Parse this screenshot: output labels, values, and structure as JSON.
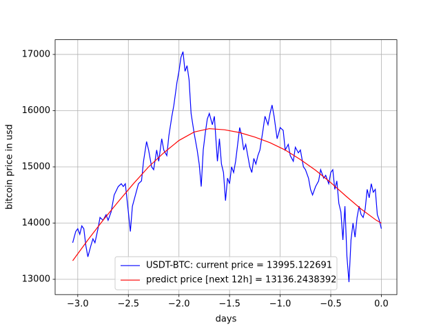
{
  "chart_data": {
    "type": "line",
    "xlabel": "days",
    "ylabel": "bitcoin price in usd",
    "xlim": [
      -3.2235,
      0.1535
    ],
    "ylim": [
      12728,
      17262
    ],
    "xticks": [
      {
        "value": -3.0,
        "label": "−3.0"
      },
      {
        "value": -2.5,
        "label": "−2.5"
      },
      {
        "value": -2.0,
        "label": "−2.0"
      },
      {
        "value": -1.5,
        "label": "−1.5"
      },
      {
        "value": -1.0,
        "label": "−1.0"
      },
      {
        "value": -0.5,
        "label": "−0.5"
      },
      {
        "value": 0.0,
        "label": "0.0"
      }
    ],
    "yticks": [
      13000,
      14000,
      15000,
      16000,
      17000
    ],
    "grid": true,
    "legend": "lower center",
    "series": [
      {
        "name": "USDT-BTC: current price = 13995.122691",
        "color": "#0000ff",
        "x": [
          -3.05,
          -3.02,
          -3.0,
          -2.98,
          -2.96,
          -2.94,
          -2.92,
          -2.9,
          -2.87,
          -2.85,
          -2.83,
          -2.8,
          -2.78,
          -2.75,
          -2.72,
          -2.7,
          -2.67,
          -2.64,
          -2.6,
          -2.57,
          -2.55,
          -2.53,
          -2.5,
          -2.48,
          -2.46,
          -2.43,
          -2.4,
          -2.37,
          -2.35,
          -2.32,
          -2.3,
          -2.27,
          -2.25,
          -2.22,
          -2.2,
          -2.17,
          -2.15,
          -2.12,
          -2.1,
          -2.07,
          -2.05,
          -2.02,
          -2.0,
          -1.98,
          -1.96,
          -1.94,
          -1.92,
          -1.9,
          -1.88,
          -1.85,
          -1.82,
          -1.8,
          -1.78,
          -1.76,
          -1.74,
          -1.72,
          -1.7,
          -1.67,
          -1.65,
          -1.62,
          -1.6,
          -1.58,
          -1.56,
          -1.54,
          -1.52,
          -1.5,
          -1.48,
          -1.46,
          -1.44,
          -1.42,
          -1.4,
          -1.38,
          -1.36,
          -1.34,
          -1.32,
          -1.3,
          -1.28,
          -1.26,
          -1.24,
          -1.22,
          -1.2,
          -1.17,
          -1.15,
          -1.12,
          -1.1,
          -1.08,
          -1.06,
          -1.03,
          -1.0,
          -0.97,
          -0.95,
          -0.92,
          -0.9,
          -0.87,
          -0.85,
          -0.82,
          -0.8,
          -0.77,
          -0.75,
          -0.72,
          -0.7,
          -0.68,
          -0.65,
          -0.62,
          -0.6,
          -0.57,
          -0.55,
          -0.52,
          -0.5,
          -0.48,
          -0.46,
          -0.44,
          -0.42,
          -0.4,
          -0.38,
          -0.36,
          -0.34,
          -0.32,
          -0.3,
          -0.28,
          -0.26,
          -0.24,
          -0.22,
          -0.2,
          -0.18,
          -0.16,
          -0.14,
          -0.12,
          -0.1,
          -0.08,
          -0.06,
          -0.04,
          -0.02,
          0.0
        ],
        "values": [
          13650,
          13850,
          13900,
          13800,
          13950,
          13900,
          13600,
          13400,
          13600,
          13720,
          13650,
          13900,
          14100,
          14050,
          14150,
          14050,
          14200,
          14500,
          14650,
          14700,
          14650,
          14700,
          14200,
          13850,
          14300,
          14500,
          14700,
          14750,
          15100,
          15450,
          15300,
          15000,
          14950,
          15300,
          15100,
          15500,
          15300,
          15200,
          15550,
          15900,
          16100,
          16500,
          16700,
          16950,
          17050,
          16700,
          16800,
          16550,
          15950,
          15600,
          15300,
          15050,
          14650,
          15300,
          15600,
          15850,
          15950,
          15750,
          15900,
          15100,
          15500,
          15050,
          14900,
          14400,
          14800,
          14700,
          15000,
          14900,
          15100,
          15400,
          15700,
          15550,
          15300,
          15400,
          15200,
          15000,
          14900,
          15150,
          15050,
          15200,
          15300,
          15650,
          15900,
          15750,
          15950,
          16100,
          15900,
          15500,
          15700,
          15650,
          15300,
          15400,
          15200,
          15100,
          15350,
          15250,
          15300,
          15000,
          14950,
          14800,
          14600,
          14500,
          14650,
          14750,
          14950,
          14800,
          14850,
          14700,
          14900,
          14950,
          14600,
          14750,
          14350,
          14200,
          13700,
          14300,
          13400,
          12950,
          13700,
          14000,
          13750,
          14100,
          14300,
          14150,
          14100,
          14250,
          14600,
          14450,
          14700,
          14550,
          14600,
          14150,
          14050,
          13900
        ]
      },
      {
        "name": "predict price [next 12h] = 13136.2438392",
        "color": "#ff0000",
        "x": [
          -3.05,
          -2.9,
          -2.75,
          -2.6,
          -2.45,
          -2.3,
          -2.15,
          -2.0,
          -1.85,
          -1.7,
          -1.55,
          -1.4,
          -1.25,
          -1.1,
          -0.95,
          -0.8,
          -0.65,
          -0.5,
          -0.35,
          -0.2,
          -0.05,
          0.0
        ],
        "values": [
          13330,
          13700,
          14050,
          14380,
          14700,
          15000,
          15250,
          15470,
          15620,
          15680,
          15660,
          15610,
          15530,
          15430,
          15300,
          15130,
          14940,
          14720,
          14480,
          14250,
          14050,
          14000
        ]
      }
    ]
  }
}
